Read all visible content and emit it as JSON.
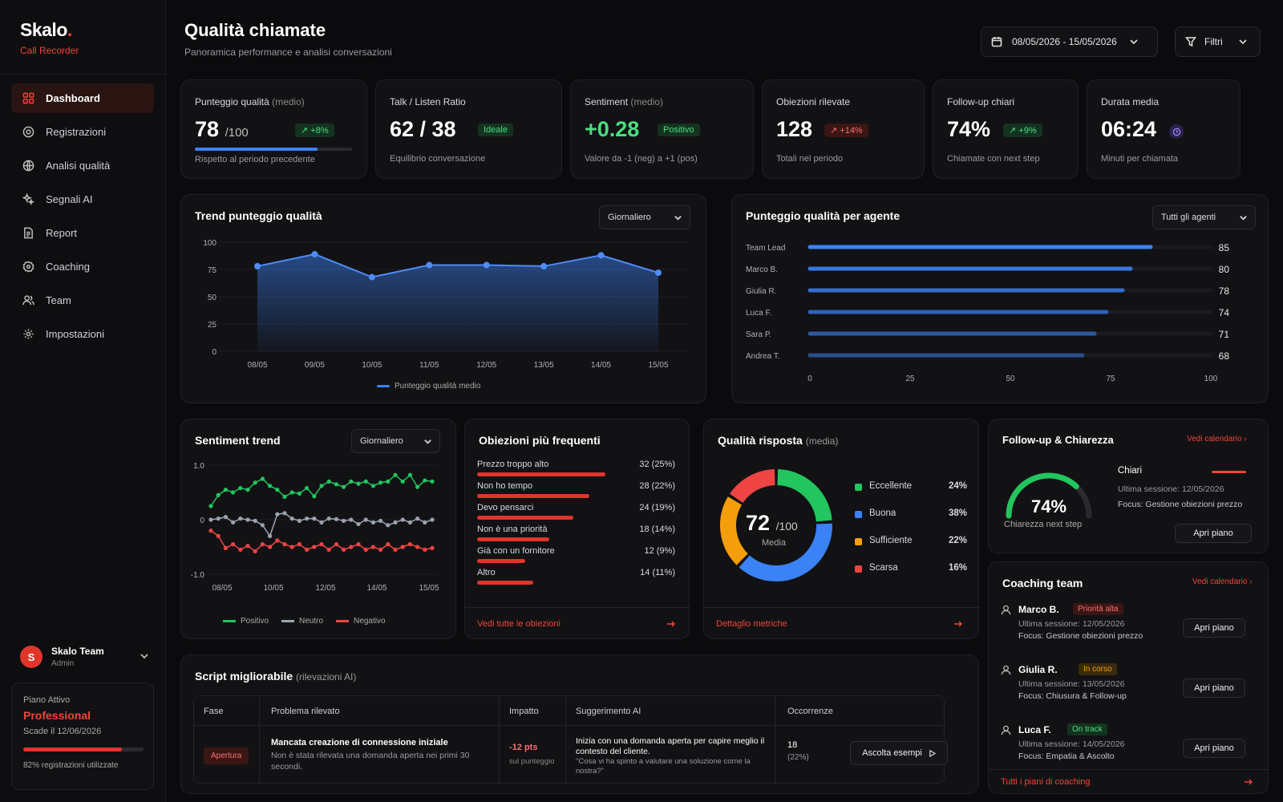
{
  "brand": {
    "name": "Skalo",
    "dot": ".",
    "sub": "Call Recorder"
  },
  "nav": [
    {
      "label": "Dashboard",
      "icon": "grid-icon"
    },
    {
      "label": "Registrazioni",
      "icon": "record-icon"
    },
    {
      "label": "Analisi qualità",
      "icon": "globe-icon"
    },
    {
      "label": "Segnali AI",
      "icon": "sparkle-icon"
    },
    {
      "label": "Report",
      "icon": "document-icon"
    },
    {
      "label": "Coaching",
      "icon": "badge-icon"
    },
    {
      "label": "Team",
      "icon": "users-icon"
    },
    {
      "label": "Impostazioni",
      "icon": "gear-icon"
    }
  ],
  "user": {
    "initial": "S",
    "name": "Skalo Team",
    "role": "Admin"
  },
  "plan": {
    "label": "Piano Attivo",
    "name": "Professional",
    "expiry": "Scade il 12/06/2026",
    "usage": "82% registrazioni utilizzate",
    "usage_fraction": 0.82
  },
  "header": {
    "title": "Qualità chiamate",
    "subtitle": "Panoramica performance e analisi conversazioni",
    "date_range": "08/05/2026 - 15/05/2026",
    "filter": "Filtri"
  },
  "kpis": {
    "quality": {
      "label": "Punteggio qualità",
      "label_suffix": "(medio)",
      "value": "78",
      "suffix": "/100",
      "badge": "↗ +8%",
      "desc": "Rispetto al periodo precedente",
      "progress": 0.78
    },
    "talk": {
      "label": "Talk / Listen Ratio",
      "value": "62 / 38",
      "badge": "Ideale",
      "desc": "Equilibrio conversazione"
    },
    "sentiment": {
      "label": "Sentiment",
      "label_suffix": "(medio)",
      "value": "+0.28",
      "badge": "Positivo",
      "desc": "Valore da -1 (neg) a +1 (pos)"
    },
    "objections": {
      "label": "Obiezioni rilevate",
      "value": "128",
      "badge": "↗ +14%",
      "desc": "Totali nel periodo"
    },
    "followup": {
      "label": "Follow-up chiari",
      "value": "74%",
      "badge": "↗ +9%",
      "desc": "Chiamate con next step"
    },
    "duration": {
      "label": "Durata media",
      "value": "06:24",
      "desc": "Minuti per chiamata"
    }
  },
  "trend": {
    "title": "Trend punteggio qualità",
    "select": "Giornaliero",
    "legend": "Punteggio qualità medio"
  },
  "agents": {
    "title": "Punteggio qualità per agente",
    "select": "Tutti gli agenti"
  },
  "sentiment_trend": {
    "title": "Sentiment trend",
    "select": "Giornaliero",
    "legend": [
      "Positivo",
      "Neutro",
      "Negativo"
    ]
  },
  "objections_list": {
    "title": "Obiezioni più frequenti",
    "link": "Vedi tutte le obiezioni",
    "items": [
      {
        "label": "Prezzo troppo alto",
        "value": "32 (25%)",
        "count": 32
      },
      {
        "label": "Non ho tempo",
        "value": "28 (22%)",
        "count": 28
      },
      {
        "label": "Devo pensarci",
        "value": "24 (19%)",
        "count": 24
      },
      {
        "label": "Non è una priorità",
        "value": "18 (14%)",
        "count": 18
      },
      {
        "label": "Già con un fornitore",
        "value": "12 (9%)",
        "count": 12
      },
      {
        "label": "Altro",
        "value": "14 (11%)",
        "count": 14
      }
    ]
  },
  "response_quality": {
    "title": "Qualità risposta",
    "title_suffix": "(media)",
    "value": "72",
    "suffix": "/100",
    "center_label": "Media",
    "link": "Dettaglio metriche",
    "items": [
      {
        "label": "Eccellente",
        "pct": "24%",
        "color": "#22c55e"
      },
      {
        "label": "Buona",
        "pct": "38%",
        "color": "#3b82f6"
      },
      {
        "label": "Sufficiente",
        "pct": "22%",
        "color": "#f59e0b"
      },
      {
        "label": "Scarsa",
        "pct": "16%",
        "color": "#ef4444"
      }
    ]
  },
  "followup_card": {
    "title": "Follow-up & Chiarezza",
    "link": "Vedi calendario",
    "value": "74%",
    "caption": "Chiarezza next step",
    "gauge": 0.74,
    "tag": "Chiari",
    "meta1": "Ultima sessione: 12/05/2026",
    "meta2": "Focus: Gestione obiezioni prezzo",
    "button": "Apri piano"
  },
  "coaching": {
    "title": "Coaching team",
    "link": "Vedi calendario",
    "footer": "Tutti i piani di coaching",
    "items": [
      {
        "name": "Marco B.",
        "status": "Priorità alta",
        "meta1": "Ultima sessione: 12/05/2026",
        "meta2": "Focus: Gestione obiezioni prezzo",
        "button": "Apri piano"
      },
      {
        "name": "Giulia R.",
        "status": "In corso",
        "meta1": "Ultima sessione: 13/05/2026",
        "meta2": "Focus: Chiusura & Follow-up",
        "button": "Apri piano"
      },
      {
        "name": "Luca F.",
        "status": "On track",
        "meta1": "Ultima sessione: 14/05/2026",
        "meta2": "Focus: Empatia & Ascolto",
        "button": "Apri piano"
      }
    ]
  },
  "scripts": {
    "title": "Script migliorabile",
    "title_suffix": "(rilevazioni AI)",
    "headers": [
      "Fase",
      "Problema rilevato",
      "Impatto",
      "Suggerimento AI",
      "Occorrenze"
    ],
    "row": {
      "phase": "Apertura",
      "problem_title": "Mancata creazione di connessione iniziale",
      "problem_desc": "Non è stata rilevata una domanda aperta nei primi 30 secondi.",
      "impact": "-12 pts",
      "impact_sub": "sul punteggio",
      "suggestion": "Inizia con una domanda aperta per capire meglio il contesto del cliente.",
      "quote": "\"Cosa vi ha spinto a valutare una soluzione come la nostra?\"",
      "occ": "18",
      "occ_pct": "(22%)",
      "button": "Ascolta esempi"
    }
  },
  "chart_data": [
    {
      "type": "area",
      "title": "Trend punteggio qualità",
      "x": [
        "08/05",
        "09/05",
        "10/05",
        "11/05",
        "12/05",
        "13/05",
        "14/05",
        "15/05"
      ],
      "series": [
        {
          "name": "Punteggio qualità medio",
          "values": [
            78,
            89,
            68,
            79,
            79,
            78,
            88,
            72
          ]
        }
      ],
      "ylim": [
        0,
        100
      ],
      "yticks": [
        0,
        25,
        50,
        75,
        100
      ]
    },
    {
      "type": "bar",
      "orientation": "horizontal",
      "title": "Punteggio qualità per agente",
      "categories": [
        "Team Lead",
        "Marco B.",
        "Giulia R.",
        "Luca F.",
        "Sara P.",
        "Andrea T."
      ],
      "values": [
        85,
        80,
        78,
        74,
        71,
        68
      ],
      "xlim": [
        0,
        100
      ],
      "xticks": [
        0,
        25,
        50,
        75,
        100
      ]
    },
    {
      "type": "line",
      "title": "Sentiment trend",
      "x_labels": [
        "08/05",
        "10/05",
        "12/05",
        "14/05",
        "15/05"
      ],
      "ylim": [
        -1,
        1
      ],
      "yticks": [
        "1.0",
        "0",
        "-1.0"
      ],
      "series": [
        {
          "name": "Positivo",
          "color": "#22c55e",
          "values": [
            0.25,
            0.45,
            0.55,
            0.5,
            0.58,
            0.55,
            0.68,
            0.75,
            0.62,
            0.55,
            0.42,
            0.5,
            0.48,
            0.58,
            0.43,
            0.62,
            0.7,
            0.65,
            0.6,
            0.7,
            0.66,
            0.7,
            0.62,
            0.68,
            0.7,
            0.82,
            0.7,
            0.82,
            0.6,
            0.72,
            0.7
          ]
        },
        {
          "name": "Neutro",
          "color": "#9ca3af",
          "values": [
            0,
            0.02,
            0.05,
            -0.05,
            0.02,
            0,
            -0.02,
            -0.1,
            -0.3,
            0.1,
            0.12,
            0.02,
            -0.02,
            0.02,
            0.02,
            -0.05,
            0.02,
            0.01,
            -0.02,
            0,
            -0.08,
            0,
            -0.05,
            -0.02,
            -0.1,
            -0.05,
            0,
            -0.05,
            0.02,
            -0.05,
            0
          ]
        },
        {
          "name": "Negativo",
          "color": "#ef4444",
          "values": [
            -0.2,
            -0.3,
            -0.52,
            -0.45,
            -0.55,
            -0.48,
            -0.58,
            -0.45,
            -0.5,
            -0.38,
            -0.45,
            -0.5,
            -0.45,
            -0.55,
            -0.5,
            -0.45,
            -0.55,
            -0.45,
            -0.55,
            -0.5,
            -0.45,
            -0.55,
            -0.5,
            -0.55,
            -0.45,
            -0.55,
            -0.5,
            -0.45,
            -0.5,
            -0.55,
            -0.52
          ]
        }
      ]
    },
    {
      "type": "pie",
      "title": "Qualità risposta",
      "categories": [
        "Eccellente",
        "Buona",
        "Sufficiente",
        "Scarsa"
      ],
      "values": [
        24,
        38,
        22,
        16
      ]
    }
  ]
}
